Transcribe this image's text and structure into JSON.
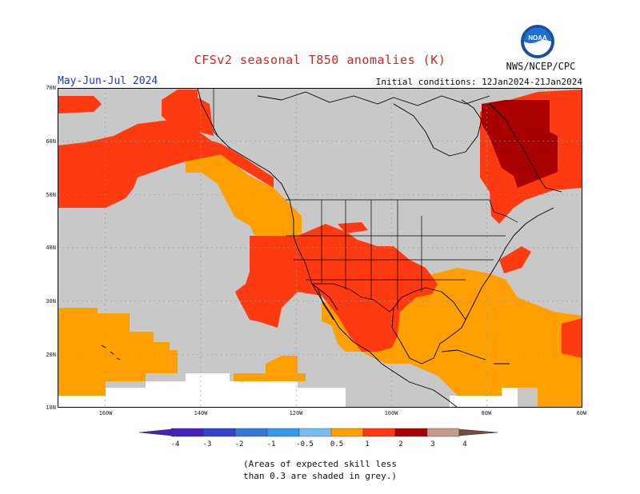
{
  "header": {
    "title": "CFSv2 seasonal T850 anomalies (K)",
    "season": "May-Jun-Jul 2024",
    "initial_conditions": "Initial conditions: 12Jan2024-21Jan2024",
    "org": "NWS/NCEP/CPC",
    "logo_text": "NOAA"
  },
  "axes": {
    "lat_labels": [
      "70N",
      "60N",
      "50N",
      "40N",
      "30N",
      "20N",
      "10N"
    ],
    "lon_labels": [
      "160W",
      "140W",
      "120W",
      "100W",
      "80W",
      "60W"
    ]
  },
  "legend": {
    "tick_labels": [
      "-4",
      "-3",
      "-2",
      "-1",
      "-0.5",
      "0.5",
      "1",
      "2",
      "3",
      "4"
    ],
    "colors": {
      "c_m4": "#4422bb",
      "c_m3": "#3344cc",
      "c_m2": "#3377dd",
      "c_m1": "#3399ee",
      "c_m05": "#77bbf0",
      "c_neutral": "#ffffff",
      "c_p05": "#ffa000",
      "c_p1": "#ff3a10",
      "c_p2": "#a80000",
      "c_p3": "#c49a8c",
      "c_p4": "#7a4a3a"
    }
  },
  "map": {
    "colors": {
      "grey_low_skill": "#c8c8c8",
      "orange_0_5_to_1": "#ffa000",
      "red_1_to_2": "#ff3a10",
      "darkred_2_to_3": "#a80000",
      "coast": "#000000"
    }
  },
  "note": {
    "line1": "(Areas of expected skill less",
    "line2": "than 0.3 are shaded in grey.)"
  }
}
